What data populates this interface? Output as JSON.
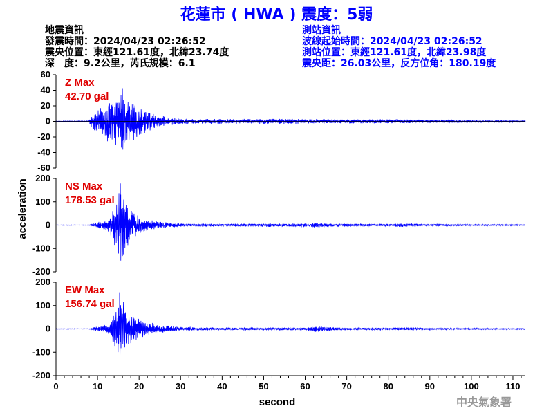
{
  "header": {
    "title": "花蓮市 ( HWA ) 震度：5弱",
    "left_info": [
      "地震資訊",
      "發震時間：2024/04/23 02:26:52",
      "震央位置：東經121.61度，北緯23.74度",
      "深　度：9.2公里，芮氏規模：6.1"
    ],
    "right_info": [
      "測站資訊",
      "波線起始時間：2024/04/23 02:26:52",
      "測站位置：東經121.61度，北緯23.98度",
      "震央距：26.03公里，反方位角：180.19度"
    ]
  },
  "credit": "中央氣象署",
  "colors": {
    "title": "#0000ff",
    "trace": "#0000ff",
    "max_label": "#e00000",
    "right_info": "#0000ff"
  },
  "chart_data": {
    "type": "line",
    "xlabel": "second",
    "ylabel": "acceleration",
    "xlim": [
      0,
      113
    ],
    "x_ticks": [
      0,
      10,
      20,
      30,
      40,
      50,
      60,
      70,
      80,
      90,
      100,
      110
    ],
    "panels": [
      {
        "name": "Z",
        "max_label": "Z Max",
        "max_value": "42.70 gal",
        "peak": 42.7,
        "ylim": [
          -60,
          60
        ],
        "y_ticks": [
          60,
          40,
          20,
          0,
          -20,
          -40,
          -60
        ],
        "envelope": [
          [
            0,
            0.5
          ],
          [
            7.8,
            0.5
          ],
          [
            8.5,
            6
          ],
          [
            10,
            14
          ],
          [
            12,
            20
          ],
          [
            14,
            26
          ],
          [
            16,
            30
          ],
          [
            18,
            22
          ],
          [
            20,
            16
          ],
          [
            22,
            12
          ],
          [
            24,
            8
          ],
          [
            26,
            6
          ],
          [
            28,
            4
          ],
          [
            30,
            3
          ],
          [
            35,
            3.2
          ],
          [
            40,
            2.6
          ],
          [
            50,
            2.8
          ],
          [
            60,
            2.6
          ],
          [
            70,
            2.2
          ],
          [
            80,
            2.2
          ],
          [
            90,
            1.8
          ],
          [
            100,
            1.4
          ],
          [
            110,
            1.2
          ],
          [
            113,
            1
          ]
        ]
      },
      {
        "name": "NS",
        "max_label": "NS Max",
        "max_value": "178.53 gal",
        "peak": 178.53,
        "ylim": [
          -200,
          200
        ],
        "y_ticks": [
          200,
          100,
          0,
          -100,
          -200
        ],
        "envelope": [
          [
            0,
            1
          ],
          [
            8,
            1
          ],
          [
            9,
            8
          ],
          [
            11,
            14
          ],
          [
            13,
            30
          ],
          [
            14.5,
            90
          ],
          [
            15.5,
            130
          ],
          [
            16.5,
            90
          ],
          [
            18,
            60
          ],
          [
            20,
            30
          ],
          [
            22,
            20
          ],
          [
            25,
            12
          ],
          [
            28,
            8
          ],
          [
            30,
            6
          ],
          [
            35,
            5
          ],
          [
            40,
            4
          ],
          [
            47,
            5
          ],
          [
            50,
            7
          ],
          [
            55,
            5
          ],
          [
            60,
            6
          ],
          [
            63,
            9
          ],
          [
            66,
            6
          ],
          [
            70,
            5
          ],
          [
            80,
            4.5
          ],
          [
            83,
            6
          ],
          [
            90,
            3.5
          ],
          [
            100,
            2.5
          ],
          [
            110,
            2
          ],
          [
            113,
            2
          ]
        ]
      },
      {
        "name": "EW",
        "max_label": "EW Max",
        "max_value": "156.74 gal",
        "peak": 156.74,
        "ylim": [
          -200,
          200
        ],
        "y_ticks": [
          200,
          100,
          0,
          -100,
          -200
        ],
        "envelope": [
          [
            0,
            1
          ],
          [
            8,
            1
          ],
          [
            9,
            6
          ],
          [
            11,
            10
          ],
          [
            13,
            25
          ],
          [
            14.5,
            80
          ],
          [
            15.3,
            120
          ],
          [
            16.5,
            90
          ],
          [
            18,
            60
          ],
          [
            20,
            35
          ],
          [
            22,
            25
          ],
          [
            25,
            15
          ],
          [
            28,
            10
          ],
          [
            30,
            7
          ],
          [
            35,
            5
          ],
          [
            40,
            4
          ],
          [
            50,
            4
          ],
          [
            55,
            4
          ],
          [
            60,
            5
          ],
          [
            63,
            12
          ],
          [
            66,
            6
          ],
          [
            70,
            4
          ],
          [
            80,
            4
          ],
          [
            83,
            5
          ],
          [
            90,
            3
          ],
          [
            100,
            2.5
          ],
          [
            110,
            2
          ],
          [
            113,
            2
          ]
        ]
      }
    ]
  }
}
